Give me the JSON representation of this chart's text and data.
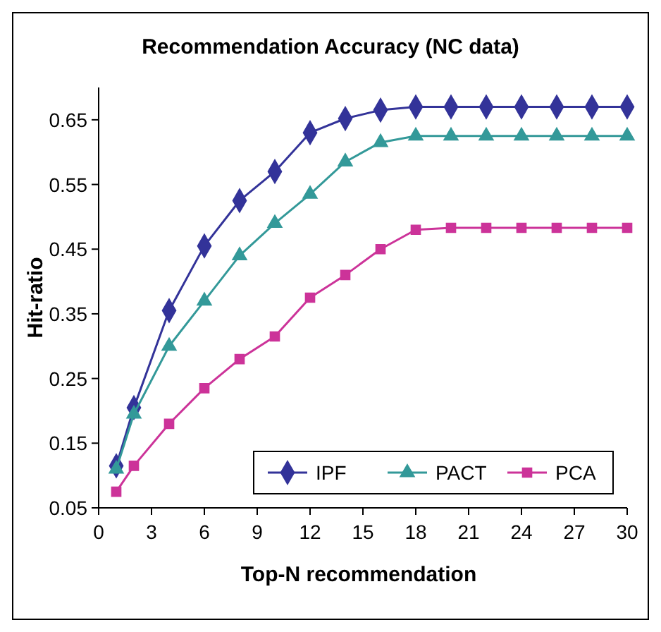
{
  "chart_data": {
    "type": "line",
    "title": "Recommendation Accuracy (NC data)",
    "xlabel": "Top-N recommendation",
    "ylabel": "Hit-ratio",
    "x": [
      1,
      2,
      4,
      6,
      8,
      10,
      12,
      14,
      16,
      18,
      20,
      22,
      24,
      26,
      28,
      30
    ],
    "xlim": [
      0,
      30
    ],
    "xticks": [
      0,
      3,
      6,
      9,
      12,
      15,
      18,
      21,
      24,
      27,
      30
    ],
    "ylim": [
      0.05,
      0.7
    ],
    "yticks": [
      0.05,
      0.15,
      0.25,
      0.35,
      0.45,
      0.55,
      0.65
    ],
    "legend": "bottom right",
    "grid": false,
    "series": [
      {
        "name": "IPF",
        "color": "#333399",
        "marker": "diamond",
        "values": [
          0.115,
          0.205,
          0.355,
          0.455,
          0.525,
          0.57,
          0.63,
          0.652,
          0.665,
          0.67,
          0.67,
          0.67,
          0.67,
          0.67,
          0.67,
          0.67
        ]
      },
      {
        "name": "PACT",
        "color": "#339999",
        "marker": "triangle",
        "values": [
          0.11,
          0.195,
          0.3,
          0.37,
          0.44,
          0.49,
          0.535,
          0.585,
          0.615,
          0.625,
          0.625,
          0.625,
          0.625,
          0.625,
          0.625,
          0.625
        ]
      },
      {
        "name": "PCA",
        "color": "#cc3399",
        "marker": "square",
        "values": [
          0.075,
          0.115,
          0.18,
          0.235,
          0.28,
          0.315,
          0.375,
          0.41,
          0.45,
          0.48,
          0.483,
          0.483,
          0.483,
          0.483,
          0.483,
          0.483
        ]
      }
    ]
  }
}
